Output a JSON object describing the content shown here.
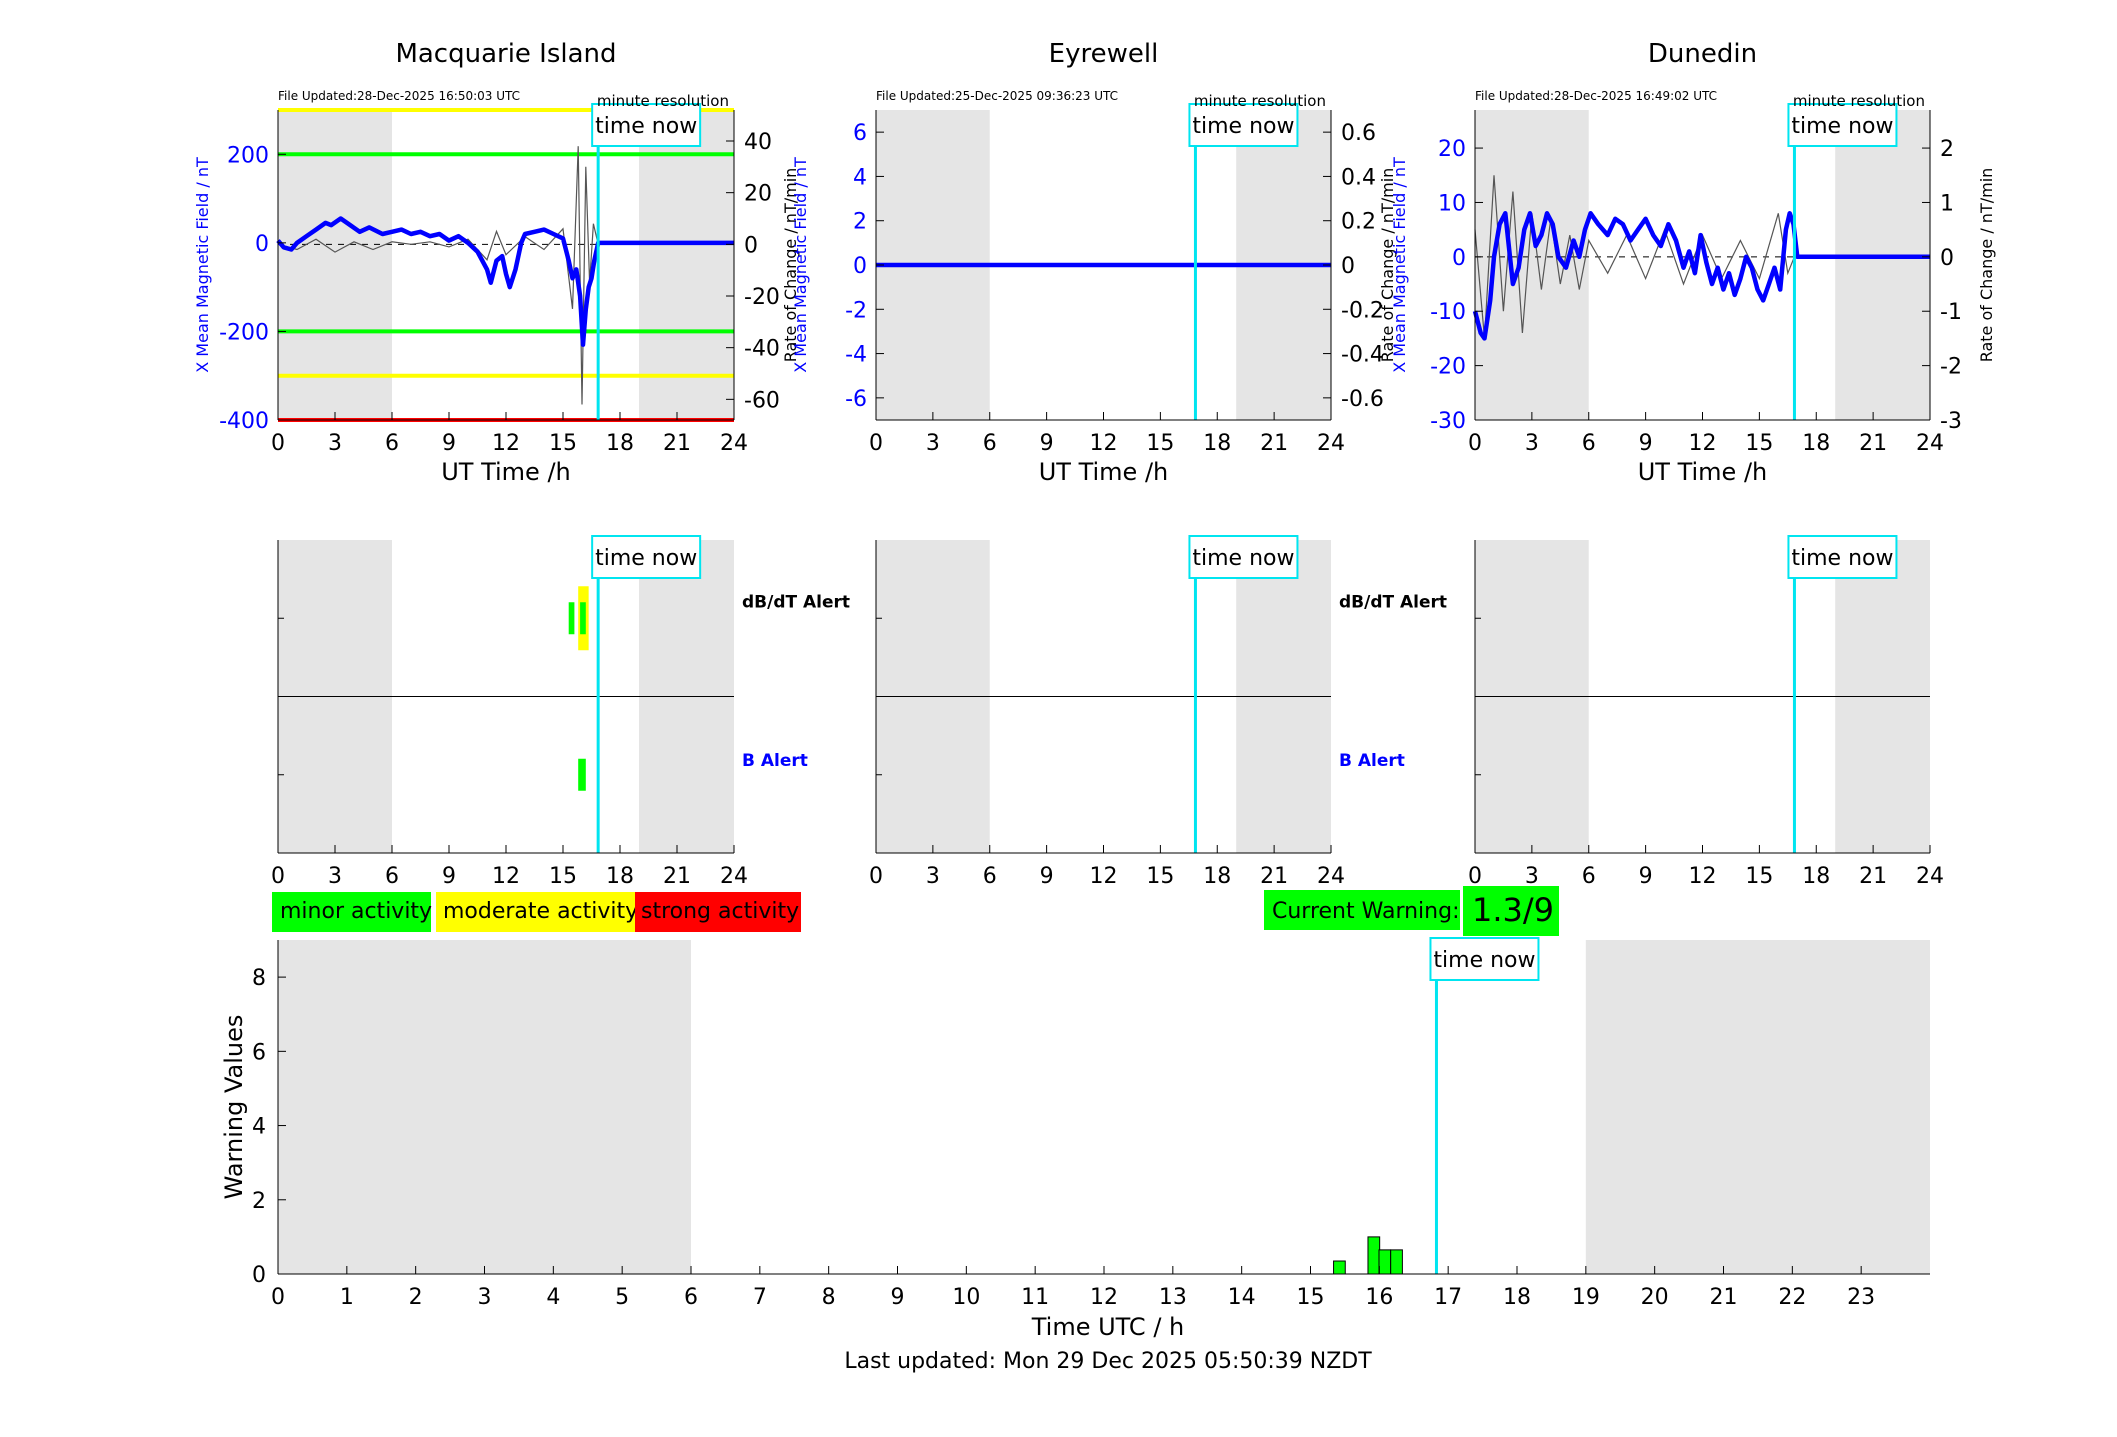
{
  "legend": {
    "minor": "minor activity",
    "moderate": "moderate activity",
    "strong": "strong activity"
  },
  "current_warning": {
    "label": "Current Warning:",
    "value": "1.3/9"
  },
  "footer": "Last updated: Mon 29 Dec 2025 05:50:39 NZDT",
  "colors": {
    "field": "#0000ff",
    "rate": "#555555",
    "now": "#00e5f0",
    "shade": "#e5e5e5",
    "minor": "#00ff00",
    "moderate": "#ffff00",
    "strong": "#ff0000"
  },
  "chart_data": [
    {
      "type": "line",
      "title": "Macquarie Island",
      "file_updated": "File Updated:28-Dec-2025 16:50:03 UTC",
      "resolution": "minute resolution",
      "now_label": "time now",
      "now_hour": 16.85,
      "shaded_hours": [
        [
          0,
          6
        ],
        [
          19,
          24
        ]
      ],
      "xlabel": "UT Time /h",
      "ylabel": "X Mean Magnetic Field / nT",
      "ylabel_right": "Rate of Change / nT/min",
      "xlim": [
        0,
        24
      ],
      "ylim": [
        -400,
        300
      ],
      "ylim_right": [
        -68,
        52
      ],
      "xticks": [
        0,
        3,
        6,
        9,
        12,
        15,
        18,
        21,
        24
      ],
      "yticks": [
        -400,
        -200,
        0,
        200
      ],
      "yticks_right": [
        -60,
        -40,
        -20,
        0,
        20,
        40
      ],
      "thresholds": [
        {
          "value": 300,
          "level": "moderate"
        },
        {
          "value": 200,
          "level": "minor"
        },
        {
          "value": -200,
          "level": "minor"
        },
        {
          "value": -300,
          "level": "moderate"
        },
        {
          "value": -400,
          "level": "strong"
        }
      ],
      "series": [
        {
          "role": "field",
          "x": [
            0,
            0.3,
            0.7,
            1,
            1.5,
            2,
            2.5,
            2.8,
            3.3,
            3.8,
            4.3,
            4.8,
            5.5,
            6,
            6.5,
            7,
            7.5,
            8,
            8.5,
            9,
            9.5,
            10,
            10.5,
            11,
            11.2,
            11.5,
            11.8,
            12,
            12.2,
            12.5,
            12.8,
            13,
            13.5,
            14,
            14.5,
            15,
            15.3,
            15.5,
            15.7,
            15.9,
            16.05,
            16.2,
            16.35,
            16.5,
            16.65,
            16.85,
            17,
            24
          ],
          "y": [
            5,
            -10,
            -15,
            0,
            15,
            30,
            45,
            40,
            55,
            40,
            25,
            35,
            20,
            25,
            30,
            20,
            25,
            15,
            20,
            5,
            15,
            0,
            -20,
            -60,
            -90,
            -40,
            -30,
            -70,
            -100,
            -60,
            0,
            20,
            25,
            30,
            20,
            10,
            -40,
            -80,
            -60,
            -120,
            -230,
            -150,
            -100,
            -80,
            -40,
            0,
            0,
            0
          ]
        },
        {
          "role": "rate",
          "x": [
            0,
            1,
            2,
            3,
            4,
            5,
            6,
            7,
            8,
            9,
            10,
            11,
            11.5,
            12,
            13,
            14,
            15,
            15.5,
            15.8,
            16,
            16.2,
            16.4,
            16.6,
            16.85
          ],
          "y": [
            0,
            -2,
            2,
            -3,
            1,
            -2,
            1,
            0,
            1,
            -1,
            2,
            -6,
            5,
            -4,
            3,
            -2,
            6,
            -25,
            38,
            -62,
            30,
            -15,
            8,
            0
          ]
        }
      ]
    },
    {
      "type": "line",
      "title": "Eyrewell",
      "file_updated": "File Updated:25-Dec-2025 09:36:23 UTC",
      "resolution": "minute resolution",
      "now_label": "time now",
      "now_hour": 16.85,
      "shaded_hours": [
        [
          0,
          6
        ],
        [
          19,
          24
        ]
      ],
      "xlabel": "UT Time /h",
      "ylabel": "X Mean Magnetic Field / nT",
      "ylabel_right": "Rate of Change / nT/min",
      "xlim": [
        0,
        24
      ],
      "ylim": [
        -7,
        7
      ],
      "ylim_right": [
        -0.7,
        0.7
      ],
      "xticks": [
        0,
        3,
        6,
        9,
        12,
        15,
        18,
        21,
        24
      ],
      "yticks": [
        -6,
        -4,
        -2,
        0,
        2,
        4,
        6
      ],
      "yticks_right": [
        -0.6,
        -0.4,
        -0.2,
        0,
        0.2,
        0.4,
        0.6
      ],
      "thresholds": [],
      "series": [
        {
          "role": "field",
          "x": [
            0,
            24
          ],
          "y": [
            0,
            0
          ]
        }
      ]
    },
    {
      "type": "line",
      "title": "Dunedin",
      "file_updated": "File Updated:28-Dec-2025 16:49:02 UTC",
      "resolution": "minute resolution",
      "now_label": "time now",
      "now_hour": 16.85,
      "shaded_hours": [
        [
          0,
          6
        ],
        [
          19,
          24
        ]
      ],
      "xlabel": "UT Time /h",
      "ylabel": "X Mean Magnetic Field / nT",
      "ylabel_right": "Rate of Change / nT/min",
      "xlim": [
        0,
        24
      ],
      "ylim": [
        -30,
        27
      ],
      "ylim_right": [
        -3,
        2.7
      ],
      "xticks": [
        0,
        3,
        6,
        9,
        12,
        15,
        18,
        21,
        24
      ],
      "yticks": [
        -30,
        -20,
        -10,
        0,
        10,
        20
      ],
      "yticks_right": [
        -3,
        -2,
        -1,
        0,
        1,
        2
      ],
      "thresholds": [],
      "series": [
        {
          "role": "field",
          "x": [
            0,
            0.3,
            0.5,
            0.8,
            1,
            1.3,
            1.6,
            2,
            2.3,
            2.6,
            2.9,
            3.2,
            3.5,
            3.8,
            4.1,
            4.4,
            4.8,
            5.2,
            5.5,
            5.8,
            6.1,
            6.5,
            7,
            7.4,
            7.8,
            8.2,
            8.6,
            9,
            9.4,
            9.8,
            10.2,
            10.6,
            11,
            11.3,
            11.6,
            11.9,
            12.2,
            12.5,
            12.8,
            13.1,
            13.4,
            13.7,
            14,
            14.3,
            14.6,
            14.9,
            15.2,
            15.5,
            15.8,
            16.1,
            16.4,
            16.6,
            16.8,
            17,
            24
          ],
          "y": [
            -10,
            -14,
            -15,
            -8,
            0,
            6,
            8,
            -5,
            -2,
            5,
            8,
            2,
            4,
            8,
            6,
            0,
            -2,
            3,
            0,
            5,
            8,
            6,
            4,
            7,
            6,
            3,
            5,
            7,
            4,
            2,
            6,
            3,
            -2,
            1,
            -3,
            4,
            -1,
            -5,
            -2,
            -6,
            -3,
            -7,
            -4,
            0,
            -2,
            -6,
            -8,
            -5,
            -2,
            -6,
            5,
            8,
            6,
            0,
            0
          ]
        },
        {
          "role": "rate",
          "x": [
            0,
            0.5,
            1,
            1.5,
            2,
            2.5,
            3,
            3.5,
            4,
            4.5,
            5,
            5.5,
            6,
            7,
            8,
            9,
            10,
            11,
            12,
            13,
            14,
            15,
            16,
            16.5,
            16.85
          ],
          "y": [
            0.5,
            -1.5,
            1.5,
            -1,
            1.2,
            -1.4,
            0.8,
            -0.6,
            0.7,
            -0.5,
            0.4,
            -0.6,
            0.3,
            -0.3,
            0.4,
            -0.4,
            0.5,
            -0.5,
            0.4,
            -0.4,
            0.3,
            -0.4,
            0.8,
            -0.3,
            0
          ]
        }
      ]
    },
    {
      "type": "bar",
      "title": "",
      "xlim": [
        0,
        24
      ],
      "xticks": [
        0,
        3,
        6,
        9,
        12,
        15,
        18,
        21,
        24
      ],
      "now_label": "time now",
      "now_hour": 16.85,
      "shaded_hours": [
        [
          0,
          6
        ],
        [
          19,
          24
        ]
      ],
      "rows": [
        "dB/dT Alert",
        "B Alert"
      ],
      "station": "Macquarie Island",
      "events": [
        {
          "row": "dB/dT Alert",
          "start": 15.3,
          "end": 15.6,
          "level": "minor"
        },
        {
          "row": "dB/dT Alert",
          "start": 15.8,
          "end": 16.35,
          "level": "moderate"
        },
        {
          "row": "dB/dT Alert",
          "start": 15.9,
          "end": 16.2,
          "level": "minor"
        },
        {
          "row": "B Alert",
          "start": 15.8,
          "end": 16.2,
          "level": "minor"
        }
      ]
    },
    {
      "type": "bar",
      "title": "",
      "xlim": [
        0,
        24
      ],
      "xticks": [
        0,
        3,
        6,
        9,
        12,
        15,
        18,
        21,
        24
      ],
      "now_label": "time now",
      "now_hour": 16.85,
      "shaded_hours": [
        [
          0,
          6
        ],
        [
          19,
          24
        ]
      ],
      "rows": [
        "dB/dT Alert",
        "B Alert"
      ],
      "station": "Eyrewell",
      "events": []
    },
    {
      "type": "bar",
      "title": "",
      "xlim": [
        0,
        24
      ],
      "xticks": [
        0,
        3,
        6,
        9,
        12,
        15,
        18,
        21,
        24
      ],
      "now_label": "time now",
      "now_hour": 16.85,
      "shaded_hours": [
        [
          0,
          6
        ],
        [
          19,
          24
        ]
      ],
      "rows": [],
      "station": "Dunedin",
      "events": []
    },
    {
      "type": "bar",
      "title": "",
      "xlabel": "Time UTC / h",
      "ylabel": "Warning Values",
      "xlim": [
        0,
        24
      ],
      "ylim": [
        0,
        9
      ],
      "xticks": [
        0,
        1,
        2,
        3,
        4,
        5,
        6,
        7,
        8,
        9,
        10,
        11,
        12,
        13,
        14,
        15,
        16,
        17,
        18,
        19,
        20,
        21,
        22,
        23
      ],
      "yticks": [
        0,
        2,
        4,
        6,
        8
      ],
      "now_label": "time now",
      "now_hour": 16.83,
      "shaded_hours": [
        [
          0,
          6
        ],
        [
          19,
          24
        ]
      ],
      "bar_width": 0.17,
      "x": [
        15.42,
        15.92,
        16.08,
        16.25
      ],
      "values": [
        0.35,
        1.0,
        0.65,
        0.65
      ]
    }
  ]
}
